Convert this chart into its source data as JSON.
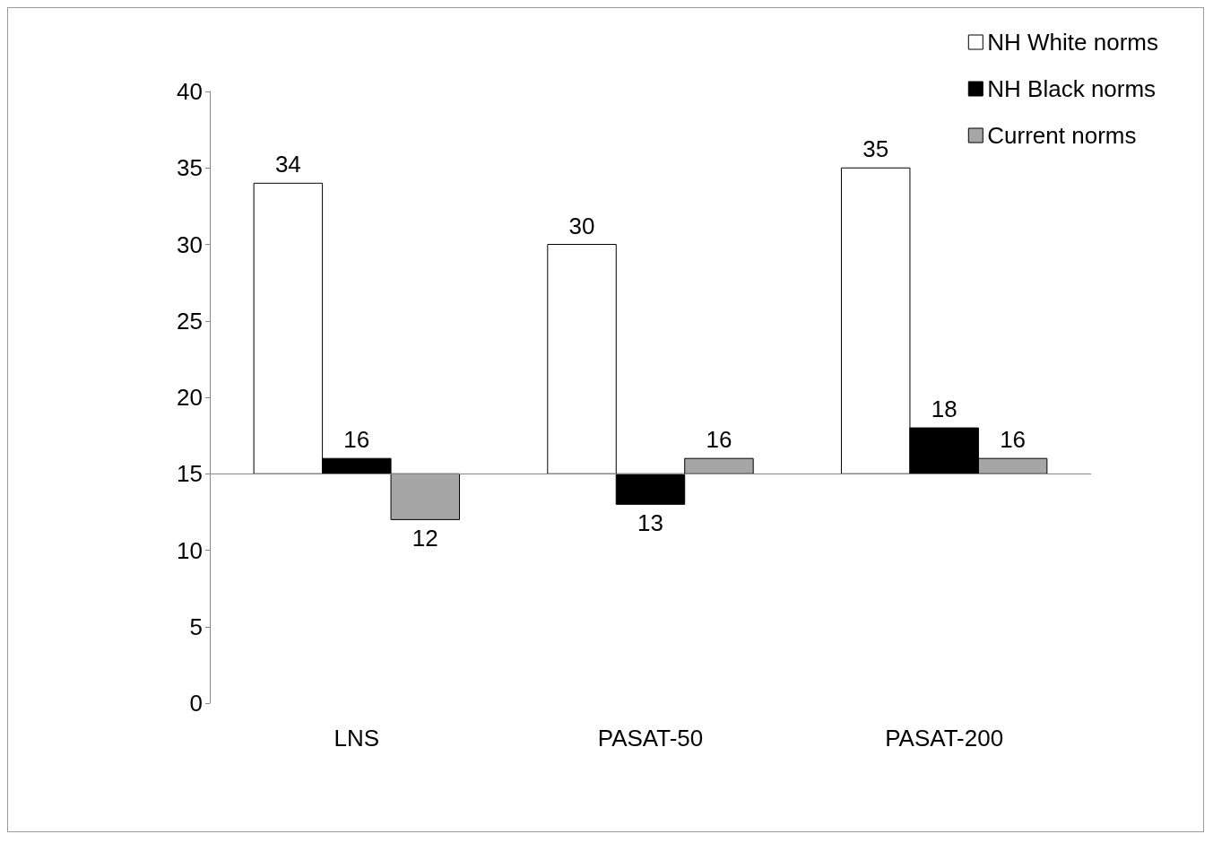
{
  "chart_data": {
    "type": "bar",
    "categories": [
      "LNS",
      "PASAT-50",
      "PASAT-200"
    ],
    "series": [
      {
        "name": "NH White norms",
        "color": "#ffffff",
        "base": [
          15,
          15,
          15
        ],
        "values": [
          19,
          15,
          20
        ],
        "value_labels": [
          "34",
          "30",
          "35"
        ]
      },
      {
        "name": "NH Black norms",
        "color": "#000000",
        "base": [
          15,
          15,
          15
        ],
        "values": [
          1,
          -2,
          3
        ],
        "value_labels": [
          "16",
          "13",
          "18"
        ]
      },
      {
        "name": "Current norms",
        "color": "#a6a6a6",
        "base": [
          15,
          15,
          15
        ],
        "values": [
          -3,
          1,
          1
        ],
        "value_labels": [
          "12",
          "16",
          "16"
        ]
      }
    ],
    "ylim": [
      0,
      40
    ],
    "yticks": [
      0,
      5,
      10,
      15,
      20,
      25,
      30,
      35,
      40
    ],
    "ref_lines": [
      {
        "axis": "y",
        "value": 15,
        "color": "#888888"
      }
    ],
    "grid": false,
    "legend": "top right"
  }
}
